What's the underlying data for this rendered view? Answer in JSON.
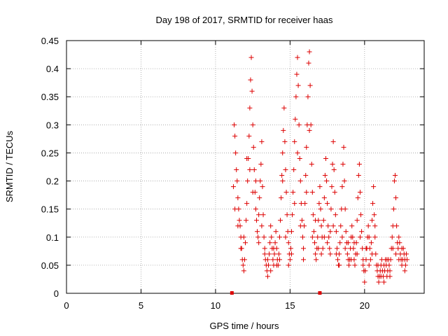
{
  "chart_data": {
    "type": "scatter",
    "title": "Day 198 of 2017, SRMTID for receiver haas",
    "xlabel": "GPS time / hours",
    "ylabel": "SRMTID / TECUs",
    "xlim": [
      0,
      24
    ],
    "ylim": [
      0,
      0.45
    ],
    "xticks": [
      0,
      5,
      10,
      15,
      20
    ],
    "yticks": [
      0,
      0.05,
      0.1,
      0.15,
      0.2,
      0.25,
      0.3,
      0.35,
      0.4,
      0.45
    ],
    "xtick_labels": [
      "0",
      "5",
      "10",
      "15",
      "20"
    ],
    "ytick_labels": [
      "0",
      "0.05",
      "0.1",
      "0.15",
      "0.2",
      "0.25",
      "0.3",
      "0.35",
      "0.4",
      "0.45"
    ],
    "grid": true,
    "marker": "+",
    "color": "#dd0000",
    "series": [
      {
        "name": "SRMTID",
        "points": [
          [
            11.2,
            0.19
          ],
          [
            11.25,
            0.3
          ],
          [
            11.3,
            0.28
          ],
          [
            11.35,
            0.25
          ],
          [
            11.4,
            0.22
          ],
          [
            11.45,
            0.2
          ],
          [
            11.5,
            0.17
          ],
          [
            11.55,
            0.15
          ],
          [
            11.6,
            0.13
          ],
          [
            11.65,
            0.12
          ],
          [
            11.7,
            0.1
          ],
          [
            11.75,
            0.08
          ],
          [
            11.8,
            0.06
          ],
          [
            11.85,
            0.05
          ],
          [
            11.9,
            0.04
          ],
          [
            11.95,
            0.06
          ],
          [
            12.0,
            0.09
          ],
          [
            12.05,
            0.13
          ],
          [
            12.1,
            0.16
          ],
          [
            12.15,
            0.2
          ],
          [
            12.2,
            0.24
          ],
          [
            12.25,
            0.28
          ],
          [
            12.3,
            0.33
          ],
          [
            12.35,
            0.38
          ],
          [
            12.4,
            0.42
          ],
          [
            12.45,
            0.36
          ],
          [
            12.5,
            0.3
          ],
          [
            12.55,
            0.26
          ],
          [
            12.6,
            0.22
          ],
          [
            12.65,
            0.18
          ],
          [
            12.7,
            0.15
          ],
          [
            12.75,
            0.13
          ],
          [
            12.8,
            0.11
          ],
          [
            12.85,
            0.1
          ],
          [
            12.9,
            0.14
          ],
          [
            12.95,
            0.17
          ],
          [
            13.0,
            0.2
          ],
          [
            13.05,
            0.23
          ],
          [
            13.1,
            0.27
          ],
          [
            13.15,
            0.19
          ],
          [
            13.2,
            0.14
          ],
          [
            13.25,
            0.1
          ],
          [
            13.3,
            0.08
          ],
          [
            13.35,
            0.06
          ],
          [
            13.4,
            0.05
          ],
          [
            13.45,
            0.04
          ],
          [
            13.5,
            0.03
          ],
          [
            13.55,
            0.05
          ],
          [
            13.6,
            0.07
          ],
          [
            13.65,
            0.09
          ],
          [
            13.7,
            0.12
          ],
          [
            13.75,
            0.1
          ],
          [
            13.8,
            0.08
          ],
          [
            13.85,
            0.06
          ],
          [
            13.9,
            0.05
          ],
          [
            13.95,
            0.07
          ],
          [
            14.0,
            0.09
          ],
          [
            14.05,
            0.11
          ],
          [
            14.1,
            0.08
          ],
          [
            14.15,
            0.06
          ],
          [
            14.2,
            0.05
          ],
          [
            14.25,
            0.07
          ],
          [
            14.3,
            0.1
          ],
          [
            14.35,
            0.13
          ],
          [
            14.4,
            0.17
          ],
          [
            14.45,
            0.21
          ],
          [
            14.5,
            0.25
          ],
          [
            14.55,
            0.29
          ],
          [
            14.6,
            0.33
          ],
          [
            14.65,
            0.27
          ],
          [
            14.7,
            0.22
          ],
          [
            14.75,
            0.18
          ],
          [
            14.8,
            0.14
          ],
          [
            14.85,
            0.11
          ],
          [
            14.9,
            0.09
          ],
          [
            14.95,
            0.07
          ],
          [
            15.0,
            0.06
          ],
          [
            15.05,
            0.08
          ],
          [
            15.1,
            0.11
          ],
          [
            15.15,
            0.14
          ],
          [
            15.2,
            0.18
          ],
          [
            15.25,
            0.22
          ],
          [
            15.3,
            0.27
          ],
          [
            15.35,
            0.31
          ],
          [
            15.4,
            0.35
          ],
          [
            15.45,
            0.39
          ],
          [
            15.5,
            0.42
          ],
          [
            15.55,
            0.37
          ],
          [
            15.6,
            0.3
          ],
          [
            15.65,
            0.24
          ],
          [
            15.7,
            0.2
          ],
          [
            15.75,
            0.16
          ],
          [
            15.8,
            0.13
          ],
          [
            15.85,
            0.1
          ],
          [
            15.9,
            0.08
          ],
          [
            15.95,
            0.12
          ],
          [
            16.0,
            0.16
          ],
          [
            16.05,
            0.21
          ],
          [
            16.1,
            0.26
          ],
          [
            16.15,
            0.3
          ],
          [
            16.2,
            0.35
          ],
          [
            16.25,
            0.41
          ],
          [
            16.3,
            0.43
          ],
          [
            16.35,
            0.37
          ],
          [
            16.4,
            0.3
          ],
          [
            16.45,
            0.23
          ],
          [
            16.5,
            0.18
          ],
          [
            16.55,
            0.14
          ],
          [
            16.6,
            0.11
          ],
          [
            16.65,
            0.09
          ],
          [
            16.7,
            0.07
          ],
          [
            16.75,
            0.06
          ],
          [
            16.8,
            0.08
          ],
          [
            16.85,
            0.1
          ],
          [
            16.9,
            0.13
          ],
          [
            16.95,
            0.16
          ],
          [
            17.0,
            0.19
          ],
          [
            17.05,
            0.15
          ],
          [
            17.1,
            0.12
          ],
          [
            17.15,
            0.1
          ],
          [
            17.2,
            0.08
          ],
          [
            17.25,
            0.13
          ],
          [
            17.3,
            0.17
          ],
          [
            17.35,
            0.21
          ],
          [
            17.4,
            0.24
          ],
          [
            17.45,
            0.2
          ],
          [
            17.5,
            0.16
          ],
          [
            17.55,
            0.12
          ],
          [
            17.6,
            0.1
          ],
          [
            17.65,
            0.08
          ],
          [
            17.7,
            0.11
          ],
          [
            17.75,
            0.15
          ],
          [
            17.8,
            0.19
          ],
          [
            17.85,
            0.23
          ],
          [
            17.9,
            0.27
          ],
          [
            17.95,
            0.22
          ],
          [
            18.0,
            0.18
          ],
          [
            18.05,
            0.14
          ],
          [
            18.1,
            0.11
          ],
          [
            18.15,
            0.08
          ],
          [
            18.2,
            0.06
          ],
          [
            18.25,
            0.05
          ],
          [
            18.3,
            0.07
          ],
          [
            18.35,
            0.09
          ],
          [
            18.4,
            0.12
          ],
          [
            18.45,
            0.15
          ],
          [
            18.5,
            0.19
          ],
          [
            18.55,
            0.23
          ],
          [
            18.6,
            0.26
          ],
          [
            18.65,
            0.2
          ],
          [
            18.7,
            0.15
          ],
          [
            18.75,
            0.11
          ],
          [
            18.8,
            0.09
          ],
          [
            18.85,
            0.07
          ],
          [
            18.9,
            0.06
          ],
          [
            18.95,
            0.05
          ],
          [
            19.0,
            0.06
          ],
          [
            19.05,
            0.08
          ],
          [
            19.1,
            0.1
          ],
          [
            19.15,
            0.12
          ],
          [
            19.2,
            0.1
          ],
          [
            19.25,
            0.08
          ],
          [
            19.3,
            0.06
          ],
          [
            19.35,
            0.05
          ],
          [
            19.4,
            0.07
          ],
          [
            19.45,
            0.09
          ],
          [
            19.5,
            0.13
          ],
          [
            19.55,
            0.17
          ],
          [
            19.6,
            0.21
          ],
          [
            19.65,
            0.23
          ],
          [
            19.7,
            0.18
          ],
          [
            19.75,
            0.14
          ],
          [
            19.8,
            0.11
          ],
          [
            19.85,
            0.08
          ],
          [
            19.9,
            0.06
          ],
          [
            19.95,
            0.04
          ],
          [
            20.0,
            0.02
          ],
          [
            20.05,
            0.04
          ],
          [
            20.1,
            0.06
          ],
          [
            20.15,
            0.08
          ],
          [
            20.2,
            0.1
          ],
          [
            20.25,
            0.12
          ],
          [
            20.3,
            0.1
          ],
          [
            20.35,
            0.08
          ],
          [
            20.4,
            0.06
          ],
          [
            20.45,
            0.09
          ],
          [
            20.5,
            0.13
          ],
          [
            20.55,
            0.16
          ],
          [
            20.6,
            0.19
          ],
          [
            20.65,
            0.14
          ],
          [
            20.7,
            0.1
          ],
          [
            20.75,
            0.07
          ],
          [
            20.8,
            0.05
          ],
          [
            20.85,
            0.04
          ],
          [
            20.9,
            0.03
          ],
          [
            20.95,
            0.02
          ],
          [
            21.0,
            0.03
          ],
          [
            21.05,
            0.04
          ],
          [
            21.1,
            0.05
          ],
          [
            21.15,
            0.06
          ],
          [
            21.2,
            0.04
          ],
          [
            21.25,
            0.03
          ],
          [
            21.3,
            0.02
          ],
          [
            21.35,
            0.04
          ],
          [
            21.4,
            0.06
          ],
          [
            21.45,
            0.05
          ],
          [
            21.5,
            0.03
          ],
          [
            21.55,
            0.04
          ],
          [
            21.6,
            0.06
          ],
          [
            21.65,
            0.05
          ],
          [
            21.7,
            0.04
          ],
          [
            21.75,
            0.06
          ],
          [
            21.8,
            0.08
          ],
          [
            21.85,
            0.1
          ],
          [
            21.9,
            0.12
          ],
          [
            21.95,
            0.15
          ],
          [
            22.0,
            0.2
          ],
          [
            22.05,
            0.21
          ],
          [
            22.1,
            0.17
          ],
          [
            22.15,
            0.12
          ],
          [
            22.2,
            0.09
          ],
          [
            22.25,
            0.08
          ],
          [
            22.3,
            0.1
          ],
          [
            22.35,
            0.09
          ],
          [
            22.4,
            0.07
          ],
          [
            22.45,
            0.06
          ],
          [
            22.5,
            0.05
          ],
          [
            22.55,
            0.06
          ],
          [
            22.6,
            0.08
          ],
          [
            22.65,
            0.07
          ],
          [
            22.7,
            0.06
          ],
          [
            22.75,
            0.05
          ],
          [
            22.8,
            0.07
          ],
          [
            22.85,
            0.06
          ],
          [
            11.3,
            0.15
          ],
          [
            11.5,
            0.12
          ],
          [
            11.7,
            0.08
          ],
          [
            11.9,
            0.1
          ],
          [
            12.1,
            0.24
          ],
          [
            12.3,
            0.22
          ],
          [
            12.5,
            0.18
          ],
          [
            12.7,
            0.2
          ],
          [
            12.9,
            0.09
          ],
          [
            13.1,
            0.12
          ],
          [
            13.3,
            0.07
          ],
          [
            13.5,
            0.06
          ],
          [
            13.7,
            0.04
          ],
          [
            13.9,
            0.08
          ],
          [
            14.1,
            0.05
          ],
          [
            14.3,
            0.06
          ],
          [
            14.5,
            0.2
          ],
          [
            14.7,
            0.1
          ],
          [
            14.9,
            0.05
          ],
          [
            15.1,
            0.07
          ],
          [
            15.3,
            0.16
          ],
          [
            15.5,
            0.25
          ],
          [
            15.7,
            0.12
          ],
          [
            15.9,
            0.06
          ],
          [
            16.1,
            0.18
          ],
          [
            16.3,
            0.29
          ],
          [
            16.5,
            0.1
          ],
          [
            16.7,
            0.13
          ],
          [
            16.9,
            0.08
          ],
          [
            17.1,
            0.07
          ],
          [
            17.3,
            0.1
          ],
          [
            17.5,
            0.09
          ],
          [
            17.7,
            0.07
          ],
          [
            17.9,
            0.12
          ],
          [
            18.1,
            0.07
          ],
          [
            18.3,
            0.05
          ],
          [
            18.5,
            0.1
          ],
          [
            18.7,
            0.08
          ],
          [
            18.9,
            0.09
          ],
          [
            19.1,
            0.06
          ],
          [
            19.3,
            0.09
          ],
          [
            19.5,
            0.07
          ],
          [
            19.7,
            0.1
          ],
          [
            19.9,
            0.05
          ],
          [
            20.1,
            0.08
          ],
          [
            20.3,
            0.05
          ],
          [
            20.5,
            0.07
          ],
          [
            20.7,
            0.12
          ],
          [
            20.9,
            0.05
          ],
          [
            21.1,
            0.03
          ],
          [
            21.3,
            0.05
          ],
          [
            21.5,
            0.06
          ],
          [
            21.7,
            0.03
          ],
          [
            21.9,
            0.08
          ],
          [
            22.1,
            0.07
          ],
          [
            22.3,
            0.06
          ],
          [
            22.5,
            0.08
          ],
          [
            22.7,
            0.04
          ]
        ]
      }
    ],
    "axis_markers": [
      {
        "x": 11.1,
        "y": 0
      },
      {
        "x": 17.0,
        "y": 0
      }
    ]
  }
}
